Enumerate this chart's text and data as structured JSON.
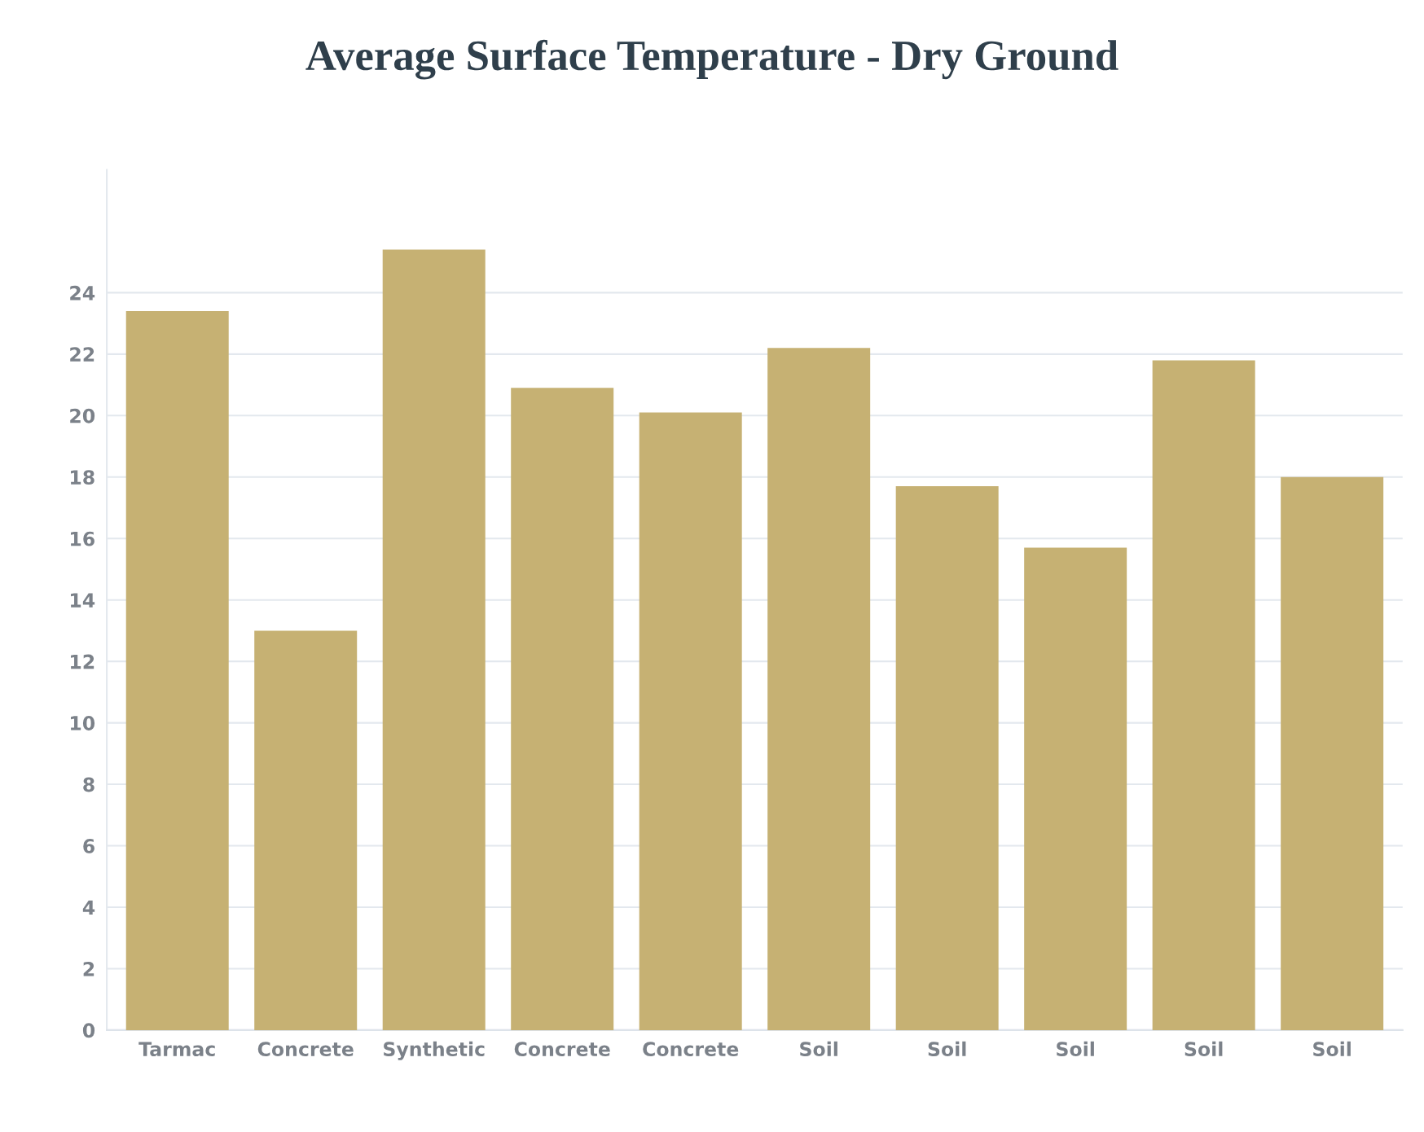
{
  "chart_data": {
    "type": "bar",
    "title": "Average Surface Temperature - Dry Ground",
    "categories": [
      "Tarmac",
      "Concrete",
      "Synthetic",
      "Concrete",
      "Concrete",
      "Soil",
      "Soil",
      "Soil",
      "Soil",
      "Soil"
    ],
    "values": [
      23.4,
      13.0,
      25.4,
      20.9,
      20.1,
      22.2,
      17.7,
      15.7,
      21.8,
      18.0
    ],
    "color": "#c6b173",
    "ylim": [
      0,
      28
    ],
    "yticks": [
      0,
      2,
      4,
      6,
      8,
      10,
      12,
      14,
      16,
      18,
      20,
      22,
      24
    ],
    "grid": "y"
  }
}
